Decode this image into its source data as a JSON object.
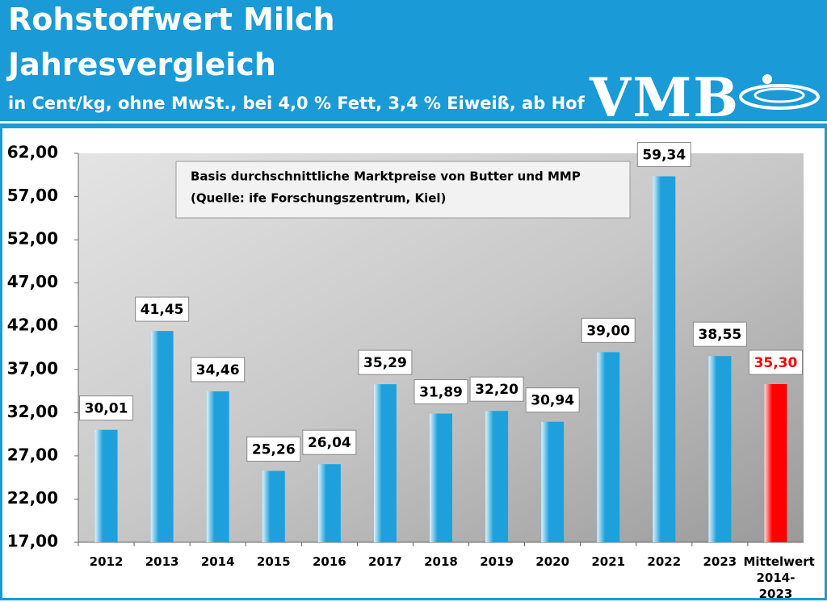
{
  "header": {
    "title_lines": [
      "Rohstoffwert Milch",
      "Jahresvergleich"
    ],
    "subtitle": "in Cent/kg, ohne MwSt., bei 4,0 % Fett, 3,4 % Eiweiß, ab Hof",
    "logo": "VMB"
  },
  "chart_data": {
    "type": "bar",
    "annotation": [
      "Basis durchschnittliche Marktpreise von Butter und MMP",
      "(Quelle: ife Forschungszentrum, Kiel)"
    ],
    "categories": [
      "2012",
      "2013",
      "2014",
      "2015",
      "2016",
      "2017",
      "2018",
      "2019",
      "2020",
      "2021",
      "2022",
      "2023",
      "Mittelwert 2014-2023"
    ],
    "values": [
      30.01,
      41.45,
      34.46,
      25.26,
      26.04,
      35.29,
      31.89,
      32.2,
      30.94,
      39.0,
      59.34,
      38.55,
      35.3
    ],
    "value_labels": [
      "30,01",
      "41,45",
      "34,46",
      "25,26",
      "26,04",
      "35,29",
      "31,89",
      "32,20",
      "30,94",
      "39,00",
      "59,34",
      "38,55",
      "35,30"
    ],
    "colors": [
      "#1ea0dc",
      "#1ea0dc",
      "#1ea0dc",
      "#1ea0dc",
      "#1ea0dc",
      "#1ea0dc",
      "#1ea0dc",
      "#1ea0dc",
      "#1ea0dc",
      "#1ea0dc",
      "#1ea0dc",
      "#1ea0dc",
      "#ff0000"
    ],
    "label_colors": [
      "#000000",
      "#000000",
      "#000000",
      "#000000",
      "#000000",
      "#000000",
      "#000000",
      "#000000",
      "#000000",
      "#000000",
      "#000000",
      "#000000",
      "#ff0000"
    ],
    "ylim": [
      17,
      62
    ],
    "yticks": [
      {
        "value": 17,
        "label": "17,00"
      },
      {
        "value": 22,
        "label": "22,00"
      },
      {
        "value": 27,
        "label": "27,00"
      },
      {
        "value": 32,
        "label": "32,00"
      },
      {
        "value": 37,
        "label": "37,00"
      },
      {
        "value": 42,
        "label": "42,00"
      },
      {
        "value": 47,
        "label": "47,00"
      },
      {
        "value": 52,
        "label": "52,00"
      },
      {
        "value": 57,
        "label": "57,00"
      },
      {
        "value": 62,
        "label": "62,00"
      }
    ]
  }
}
